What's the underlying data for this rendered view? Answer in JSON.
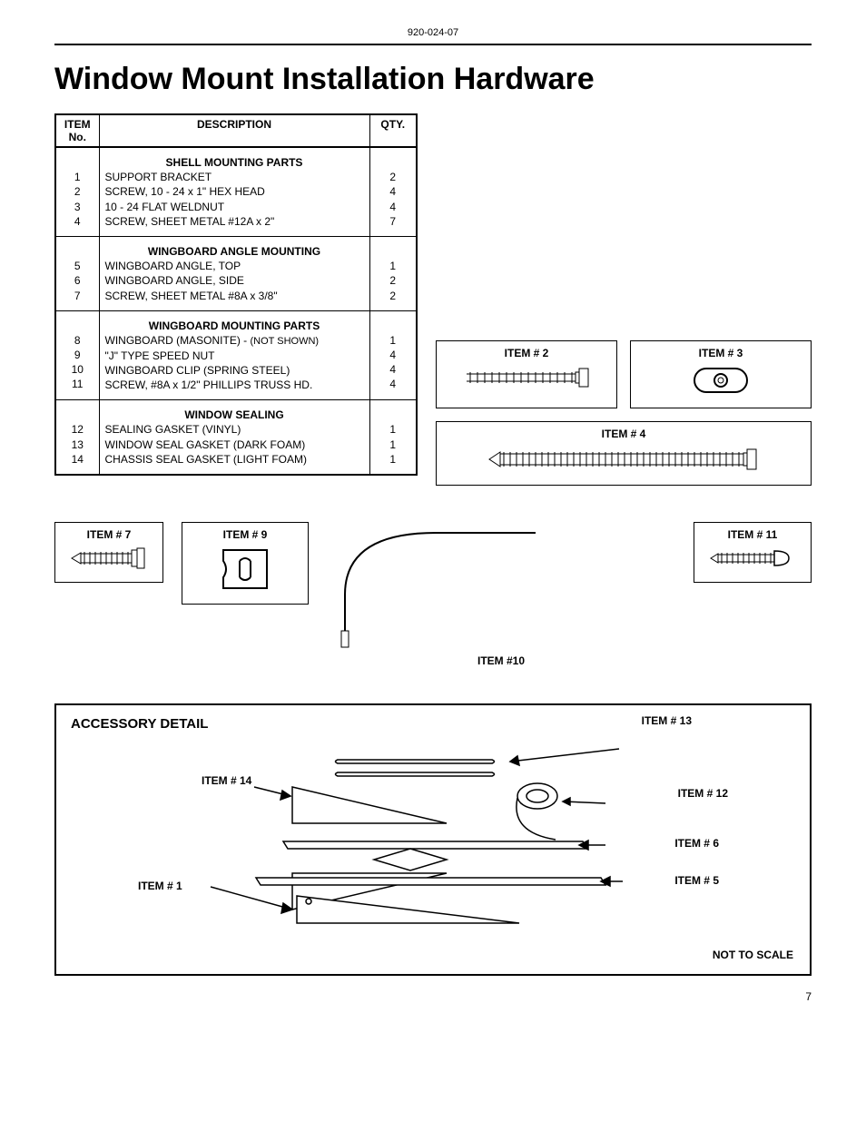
{
  "doc_number": "920-024-07",
  "title": "Window Mount Installation Hardware",
  "table": {
    "headers": {
      "item": "ITEM No.",
      "desc": "DESCRIPTION",
      "qty": "QTY."
    },
    "sections": [
      {
        "group": "SHELL MOUNTING PARTS",
        "items": [
          "1",
          "2",
          "3",
          "4"
        ],
        "descs": [
          "SUPPORT BRACKET",
          "SCREW, 10 - 24 x 1\" HEX HEAD",
          "10 - 24 FLAT WELDNUT",
          "SCREW, SHEET METAL #12A x 2\""
        ],
        "qtys": [
          "2",
          "4",
          "4",
          "7"
        ]
      },
      {
        "group": "WINGBOARD ANGLE MOUNTING",
        "items": [
          "5",
          "6",
          "7"
        ],
        "descs": [
          "WINGBOARD ANGLE, TOP",
          "WINGBOARD ANGLE, SIDE",
          "SCREW, SHEET METAL #8A x 3/8\""
        ],
        "qtys": [
          "1",
          "2",
          "2"
        ]
      },
      {
        "group": "WINGBOARD MOUNTING PARTS",
        "items": [
          "8",
          "9",
          "10",
          "11"
        ],
        "descs": [
          "WINGBOARD (MASONITE) - (NOT SHOWN)",
          "\"J\" TYPE SPEED NUT",
          "WINGBOARD CLIP (SPRING STEEL)",
          "SCREW, #8A x 1/2\" PHILLIPS TRUSS HD."
        ],
        "qtys": [
          "1",
          "4",
          "4",
          "4"
        ]
      },
      {
        "group": "WINDOW SEALING",
        "items": [
          "12",
          "13",
          "14"
        ],
        "descs": [
          "SEALING GASKET (VINYL)",
          "WINDOW SEAL GASKET (DARK FOAM)",
          "CHASSIS SEAL GASKET (LIGHT FOAM)"
        ],
        "qtys": [
          "1",
          "1",
          "1"
        ]
      }
    ],
    "not_shown_note": "(NOT SHOWN)"
  },
  "figs": {
    "item2": "ITEM # 2",
    "item3": "ITEM # 3",
    "item4": "ITEM # 4",
    "item7": "ITEM # 7",
    "item9": "ITEM # 9",
    "item10": "ITEM #10",
    "item11": "ITEM # 11"
  },
  "accessory": {
    "title": "ACCESSORY DETAIL",
    "labels": {
      "item1": "ITEM # 1",
      "item5": "ITEM # 5",
      "item6": "ITEM # 6",
      "item12": "ITEM # 12",
      "item13": "ITEM # 13",
      "item14": "ITEM # 14"
    },
    "not_scale": "NOT TO SCALE"
  },
  "page_number": "7",
  "style": {
    "text_color": "#000000",
    "bg_color": "#ffffff",
    "border_color": "#000000",
    "title_fontsize": 34,
    "body_fontsize": 12,
    "small_fontsize": 11
  }
}
